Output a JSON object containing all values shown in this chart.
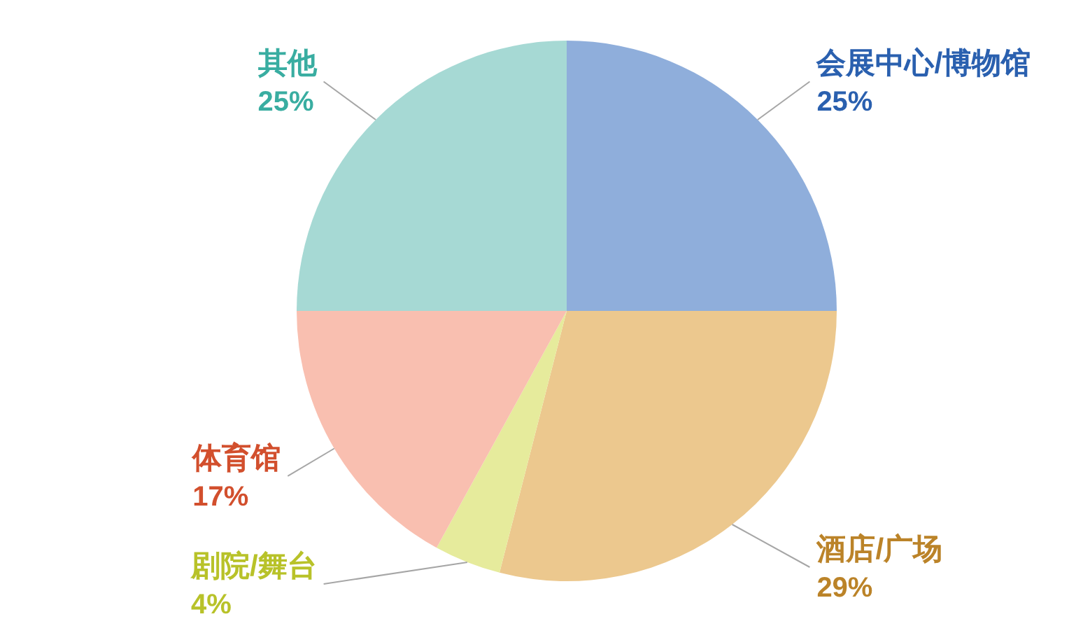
{
  "chart_data": {
    "type": "pie",
    "categories": [
      "会展中心/博物馆",
      "酒店/广场",
      "剧院/舞台",
      "体育馆",
      "其他"
    ],
    "values": [
      25,
      29,
      4,
      17,
      25
    ],
    "colors": [
      "#8faedb",
      "#ecc88e",
      "#e6eb9c",
      "#f9bfb0",
      "#a6d9d4"
    ],
    "value_labels": [
      "25%",
      "29%",
      "4%",
      "17%",
      "25%"
    ]
  }
}
